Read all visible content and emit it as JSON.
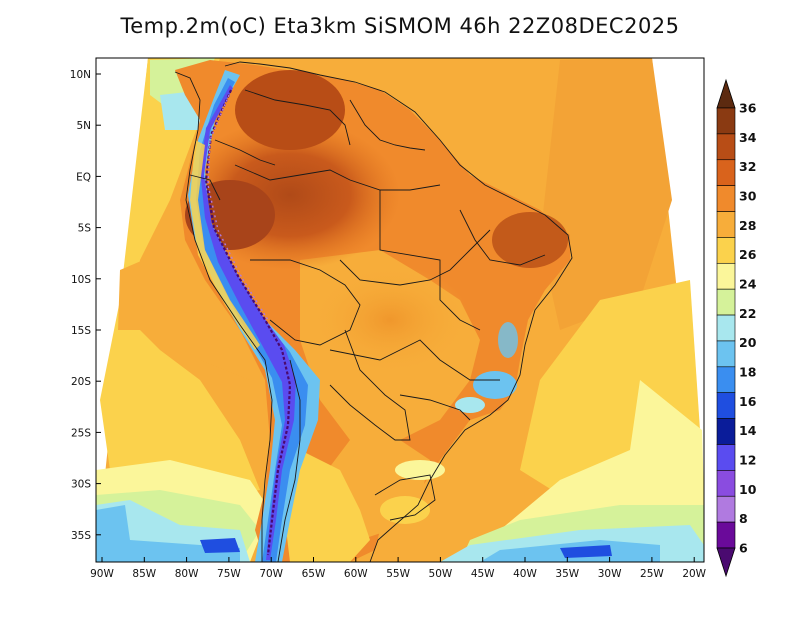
{
  "title": "Temp.2m(oC) Eta3km SiSMOM 46h 22Z08DEC2025",
  "map": {
    "variable": "2 m air temperature",
    "units": "oC",
    "region": "South America",
    "lat_labels": [
      "10N",
      "5N",
      "EQ",
      "5S",
      "10S",
      "15S",
      "20S",
      "25S",
      "30S",
      "35S"
    ],
    "lon_labels": [
      "90W",
      "85W",
      "80W",
      "75W",
      "70W",
      "65W",
      "60W",
      "55W",
      "50W",
      "45W",
      "40W",
      "35W",
      "30W",
      "25W",
      "20W"
    ]
  },
  "colorbar": {
    "labels": [
      "36",
      "34",
      "32",
      "30",
      "28",
      "26",
      "24",
      "22",
      "20",
      "18",
      "16",
      "14",
      "12",
      "10",
      "8",
      "6"
    ],
    "colors": [
      "#5c2a10",
      "#8a3a12",
      "#b84d16",
      "#d9631c",
      "#f08a2c",
      "#f7ad3a",
      "#fbd24c",
      "#fbf69a",
      "#d5f29a",
      "#a8e7ee",
      "#6cc3f0",
      "#3a8ef0",
      "#1f4ee0",
      "#0a1c9a",
      "#5a4cf0",
      "#8a4ce0",
      "#b07ae0",
      "#6a0a9a",
      "#4a0a70"
    ]
  }
}
